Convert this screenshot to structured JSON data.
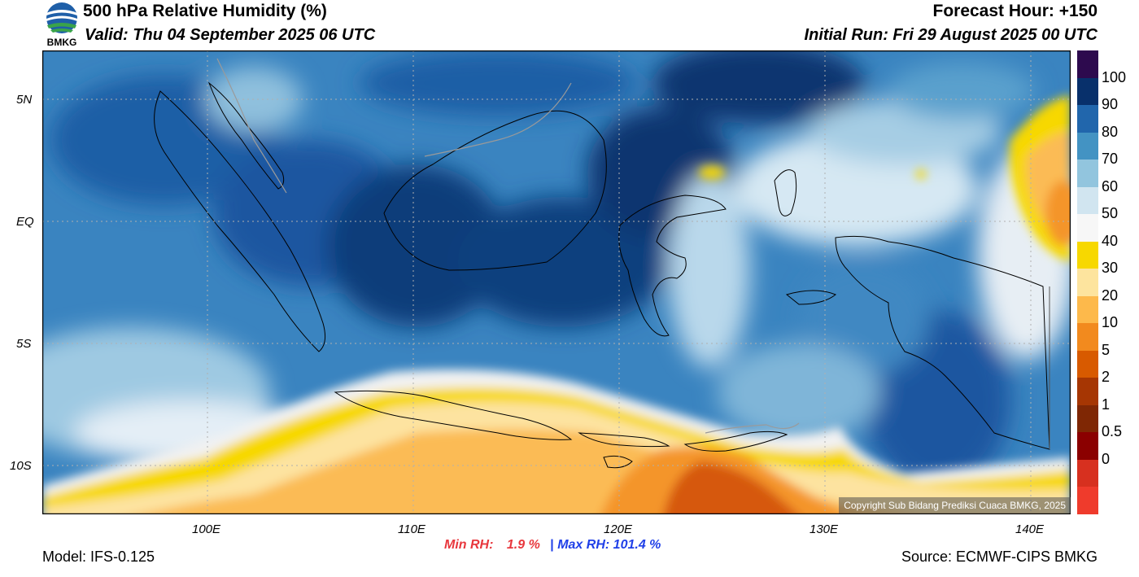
{
  "header": {
    "title": "500 hPa Relative Humidity (%)",
    "valid": "Valid: Thu 04 September 2025 06 UTC",
    "forecast_hour": "Forecast Hour: +150",
    "initial_run": "Initial Run: Fri 29 August 2025 00 UTC",
    "logo_text": "BMKG"
  },
  "map": {
    "lat_labels": [
      "5N",
      "EQ",
      "5S",
      "10S"
    ],
    "lon_labels": [
      "100E",
      "110E",
      "120E",
      "130E",
      "140E"
    ],
    "copyright": "Copyright Sub Bidang Prediksi Cuaca BMKG, 2025"
  },
  "colorbar": {
    "labels": [
      "100",
      "90",
      "80",
      "70",
      "60",
      "50",
      "40",
      "30",
      "20",
      "10",
      "5",
      "2",
      "1",
      "0.5",
      "0"
    ],
    "colors": [
      "#2d0a4e",
      "#08306b",
      "#2166ac",
      "#4393c3",
      "#92c5de",
      "#d1e5f0",
      "#f7f7f7",
      "#f7d800",
      "#fde49e",
      "#fdb94b",
      "#f28a1e",
      "#d85a00",
      "#a63603",
      "#7f2704",
      "#8b0000",
      "#d7301f",
      "#ef3b2c"
    ]
  },
  "stats": {
    "min_label": "Min RH:",
    "min_value": "1.9 %",
    "separator": "|",
    "max_label": "Max RH:",
    "max_value": "101.4 %",
    "min_color": "#e8373d",
    "max_color": "#2040e8"
  },
  "footer": {
    "model": "Model: IFS-0.125",
    "source": "Source: ECMWF-CIPS BMKG"
  }
}
